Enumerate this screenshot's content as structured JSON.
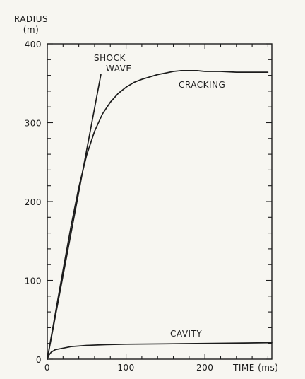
{
  "chart_data": {
    "type": "line",
    "ylabel_line1": "RADIUS",
    "ylabel_line2": "(m)",
    "xlabel": "TIME (ms)",
    "xlim": [
      0,
      285
    ],
    "ylim": [
      0,
      400
    ],
    "xticks": [
      0,
      100,
      200
    ],
    "yticks": [
      0,
      100,
      200,
      300,
      400
    ],
    "x_minor_step": 20,
    "y_minor_step": 20,
    "grid": false,
    "series": [
      {
        "name": "SHOCK WAVE",
        "label_lines": [
          "SHOCK",
          "WAVE"
        ],
        "x": [
          0,
          68
        ],
        "y": [
          0,
          361
        ]
      },
      {
        "name": "CRACKING",
        "label_lines": [
          "CRACKING"
        ],
        "x": [
          0,
          10,
          20,
          30,
          40,
          50,
          60,
          70,
          80,
          90,
          100,
          110,
          120,
          130,
          140,
          150,
          160,
          170,
          180,
          190,
          200,
          220,
          240,
          260,
          280
        ],
        "y": [
          0,
          57,
          113,
          168,
          218,
          259,
          289,
          311,
          326,
          337,
          345,
          351,
          355,
          358,
          361,
          363,
          365,
          366,
          366,
          366,
          365,
          365,
          364,
          364,
          364
        ]
      },
      {
        "name": "CAVITY",
        "label_lines": [
          "CAVITY"
        ],
        "x": [
          0,
          2,
          5,
          10,
          20,
          30,
          50,
          75,
          100,
          150,
          200,
          250,
          285
        ],
        "y": [
          0,
          5,
          9,
          12,
          14,
          16,
          17.5,
          18.5,
          19,
          19.5,
          20,
          20.5,
          21
        ]
      }
    ]
  }
}
